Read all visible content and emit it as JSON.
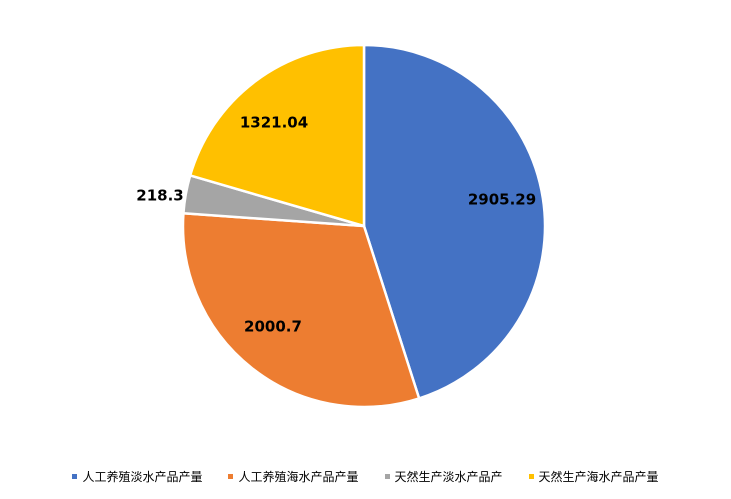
{
  "chart_data": {
    "type": "pie",
    "title": "",
    "start_angle_deg": 0,
    "direction": "clockwise",
    "legend_position": "bottom",
    "slices": [
      {
        "name": "人工养殖淡水产品产量",
        "value": 2905.29,
        "label": "2905.29",
        "color": "#4472C4"
      },
      {
        "name": "人工养殖海水产品产量",
        "value": 2000.7,
        "label": "2000.7",
        "color": "#ED7D31"
      },
      {
        "name": "天然生产淡水产品产",
        "value": 218.3,
        "label": "218.3",
        "color": "#A5A5A5"
      },
      {
        "name": "天然生产海水产品产量",
        "value": 1321.04,
        "label": "1321.04",
        "color": "#FFC000"
      }
    ]
  }
}
